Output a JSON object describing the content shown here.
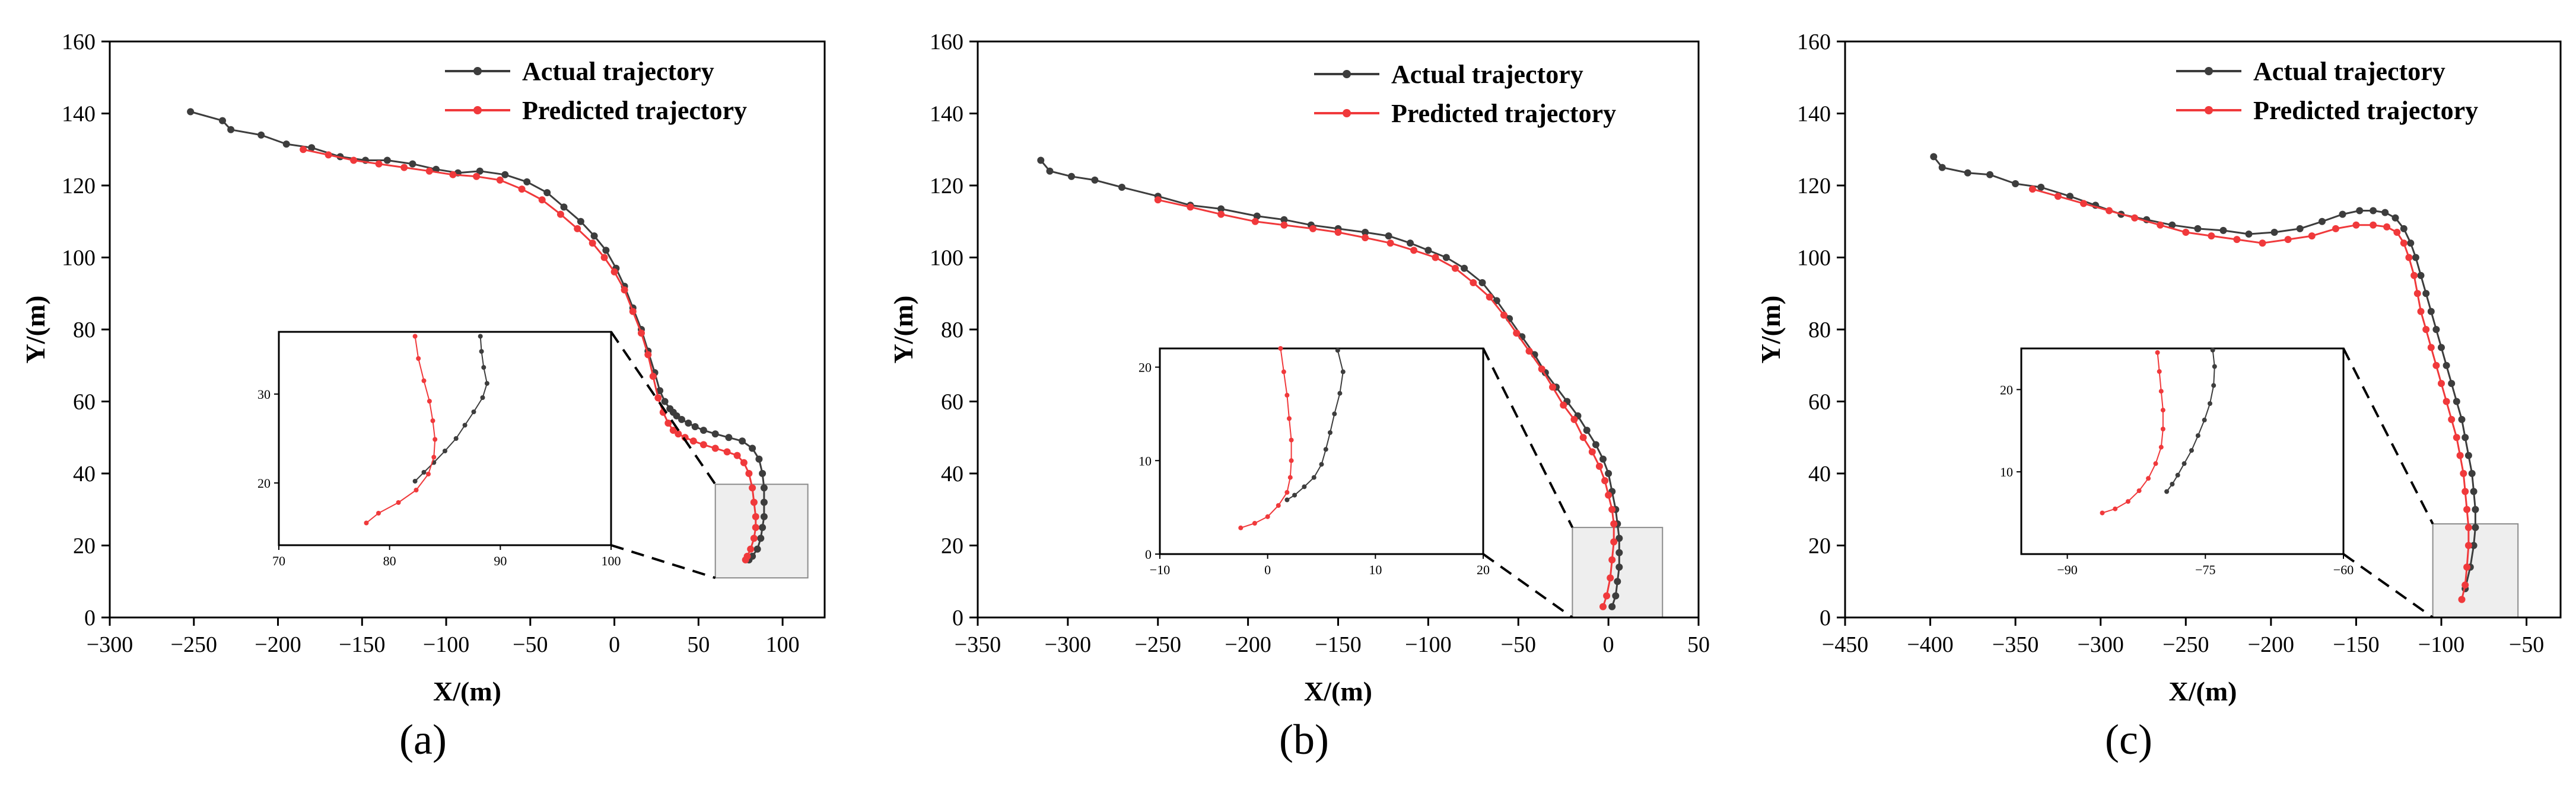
{
  "figure": {
    "panels": [
      "(a)",
      "(b)",
      "(c)"
    ]
  },
  "colors": {
    "actual": "#3d3d3d",
    "predicted": "#f0393b",
    "zoom_box_fill": "#eeeeee",
    "zoom_box_stroke": "#8c8c8c"
  },
  "chart_data": [
    {
      "type": "line",
      "panel_label": "(a)",
      "xlabel": "X/(m)",
      "ylabel": "Y/(m)",
      "xlim": [
        -300,
        125
      ],
      "ylim": [
        0,
        160
      ],
      "xticks": [
        -300,
        -250,
        -200,
        -150,
        -100,
        -50,
        0,
        50,
        100
      ],
      "yticks": [
        0,
        20,
        40,
        60,
        80,
        100,
        120,
        140,
        160
      ],
      "legend_position": "top-right",
      "series": [
        {
          "name": "Actual trajectory",
          "x": [
            -252,
            -233,
            -228,
            -210,
            -195,
            -180,
            -163,
            -148,
            -135,
            -120,
            -106,
            -93,
            -80,
            -65,
            -52,
            -40,
            -30,
            -20,
            -12,
            -5,
            1,
            6,
            11,
            16,
            20,
            24,
            27,
            30,
            33,
            35,
            37,
            40,
            44,
            48,
            53,
            60,
            68,
            76,
            82,
            86,
            88,
            89,
            89,
            89,
            88,
            87,
            85,
            82,
            80
          ],
          "y": [
            140.5,
            138,
            135.5,
            134,
            131.5,
            130.5,
            128,
            127,
            127,
            126,
            124.5,
            123.5,
            124,
            123,
            121,
            118,
            114,
            110,
            106,
            102,
            97,
            92,
            86,
            80,
            74,
            68,
            63,
            60,
            58,
            57,
            56,
            55,
            54,
            53,
            52,
            51,
            50,
            49,
            47,
            44,
            40,
            36,
            32,
            28,
            25,
            22,
            19,
            17,
            16
          ]
        },
        {
          "name": "Predicted trajectory",
          "x": [
            -185,
            -170,
            -155,
            -140,
            -125,
            -110,
            -96,
            -82,
            -68,
            -55,
            -43,
            -32,
            -22,
            -13,
            -6,
            0,
            6,
            11,
            16,
            20,
            23,
            26,
            29,
            32,
            35,
            38,
            42,
            47,
            53,
            60,
            67,
            73,
            77,
            80,
            82,
            83,
            84,
            84,
            83,
            81,
            79,
            78
          ],
          "y": [
            130,
            128.5,
            127,
            126,
            125,
            124,
            123,
            122.5,
            121.5,
            119,
            116,
            112,
            108,
            104,
            100,
            96,
            91,
            85,
            79,
            73,
            67,
            61,
            57,
            54,
            52,
            51,
            50,
            49,
            48,
            47,
            46,
            45,
            43,
            40,
            36,
            32,
            28,
            25,
            22,
            19,
            17,
            16
          ]
        }
      ],
      "zoom_region": {
        "xlim": [
          60,
          115
        ],
        "ylim": [
          11,
          37
        ]
      },
      "inset": {
        "xlim": [
          70,
          100
        ],
        "ylim": [
          13,
          37
        ],
        "xticks": [
          70,
          80,
          90,
          100
        ],
        "yticks": [
          20,
          30
        ],
        "series": [
          {
            "name": "Actual trajectory",
            "x": [
              88.2,
              88.3,
              88.5,
              88.8,
              88.4,
              87.6,
              86.8,
              86.0,
              85.0,
              84.0,
              83.1,
              82.3
            ],
            "y": [
              36.5,
              34.8,
              33.0,
              31.2,
              29.6,
              28.0,
              26.5,
              25.0,
              23.6,
              22.3,
              21.2,
              20.2
            ]
          },
          {
            "name": "Predicted trajectory",
            "x": [
              82.3,
              82.6,
              83.1,
              83.6,
              83.9,
              84.1,
              84.0,
              83.5,
              82.4,
              80.8,
              79.0,
              77.9
            ],
            "y": [
              36.5,
              34.0,
              31.5,
              29.2,
              27.0,
              24.9,
              22.9,
              21.0,
              19.2,
              17.8,
              16.6,
              15.5
            ]
          }
        ]
      }
    },
    {
      "type": "line",
      "panel_label": "(b)",
      "xlabel": "X/(m)",
      "ylabel": "Y/(m)",
      "xlim": [
        -350,
        50
      ],
      "ylim": [
        0,
        160
      ],
      "xticks": [
        -350,
        -300,
        -250,
        -200,
        -150,
        -100,
        -50,
        0,
        50
      ],
      "yticks": [
        0,
        20,
        40,
        60,
        80,
        100,
        120,
        140,
        160
      ],
      "legend_position": "top-right",
      "series": [
        {
          "name": "Actual trajectory",
          "x": [
            -315,
            -310,
            -298,
            -285,
            -270,
            -250,
            -232,
            -215,
            -195,
            -180,
            -165,
            -150,
            -135,
            -122,
            -110,
            -100,
            -90,
            -80,
            -70,
            -62,
            -55,
            -48,
            -41,
            -35,
            -29,
            -23,
            -17,
            -12,
            -7,
            -3,
            0,
            2,
            4,
            5,
            6,
            6,
            6,
            5,
            4,
            2
          ],
          "y": [
            127,
            124,
            122.5,
            121.5,
            119.5,
            117,
            114.5,
            113.5,
            111.5,
            110.5,
            109,
            108,
            107,
            106,
            104,
            102,
            100,
            97,
            93,
            88,
            83,
            78,
            73,
            68,
            64,
            60,
            56,
            52,
            48,
            44,
            40,
            35,
            30,
            26,
            22,
            18,
            14,
            10,
            6,
            3
          ]
        },
        {
          "name": "Predicted trajectory",
          "x": [
            -250,
            -232,
            -215,
            -196,
            -180,
            -164,
            -150,
            -135,
            -121,
            -108,
            -96,
            -85,
            -75,
            -66,
            -58,
            -51,
            -44,
            -37,
            -31,
            -25,
            -19,
            -14,
            -9,
            -5,
            -2,
            0,
            2,
            3,
            3,
            2,
            1,
            -1,
            -3
          ],
          "y": [
            116,
            114,
            112,
            110,
            109,
            108,
            107,
            105.5,
            104,
            102,
            100,
            97,
            93,
            89,
            84,
            79,
            74,
            69,
            64,
            59,
            55,
            50,
            46,
            42,
            38,
            34,
            30,
            26,
            21,
            16,
            11,
            6,
            3
          ]
        }
      ],
      "zoom_region": {
        "xlim": [
          -20,
          30
        ],
        "ylim": [
          0,
          25
        ]
      },
      "inset": {
        "xlim": [
          -10,
          20
        ],
        "ylim": [
          0,
          22
        ],
        "xticks": [
          -10,
          0,
          10,
          20
        ],
        "yticks": [
          0,
          10,
          20
        ],
        "series": [
          {
            "name": "Actual trajectory",
            "x": [
              6.5,
              7.0,
              6.7,
              6.2,
              5.8,
              5.4,
              5.0,
              4.3,
              3.4,
              2.5,
              1.8
            ],
            "y": [
              21.8,
              19.5,
              17.2,
              15.0,
              13.0,
              11.2,
              9.6,
              8.2,
              7.2,
              6.3,
              5.8
            ]
          },
          {
            "name": "Predicted trajectory",
            "x": [
              1.2,
              1.5,
              1.8,
              2.0,
              2.2,
              2.2,
              2.1,
              1.8,
              1.0,
              0.0,
              -1.2,
              -2.5
            ],
            "y": [
              22.0,
              19.5,
              17.0,
              14.5,
              12.2,
              10.0,
              8.2,
              6.6,
              5.2,
              4.0,
              3.3,
              2.8
            ]
          }
        ]
      }
    },
    {
      "type": "line",
      "panel_label": "(c)",
      "xlabel": "X/(m)",
      "ylabel": "Y/(m)",
      "xlim": [
        -450,
        -30
      ],
      "ylim": [
        0,
        160
      ],
      "xticks": [
        -450,
        -400,
        -350,
        -300,
        -250,
        -200,
        -150,
        -100,
        -50
      ],
      "yticks": [
        0,
        20,
        40,
        60,
        80,
        100,
        120,
        140,
        160
      ],
      "legend_position": "top-right",
      "series": [
        {
          "name": "Actual trajectory",
          "x": [
            -398,
            -393,
            -378,
            -365,
            -350,
            -335,
            -318,
            -303,
            -288,
            -273,
            -258,
            -243,
            -228,
            -213,
            -198,
            -183,
            -170,
            -158,
            -148,
            -140,
            -133,
            -127,
            -122,
            -118,
            -115,
            -112,
            -109,
            -106,
            -103,
            -100,
            -97,
            -94,
            -91,
            -88,
            -86,
            -84,
            -82,
            -81,
            -80,
            -80,
            -81,
            -83,
            -86
          ],
          "y": [
            128,
            125,
            123.5,
            123,
            120.5,
            119.5,
            117,
            114.5,
            112,
            110.5,
            109,
            108,
            107.5,
            106.5,
            107,
            108,
            110,
            112,
            113,
            113,
            112.5,
            111,
            108,
            104,
            100,
            95,
            90,
            85,
            80,
            75,
            70,
            65,
            60,
            55,
            50,
            45,
            40,
            35,
            30,
            25,
            20,
            14,
            8
          ]
        },
        {
          "name": "Predicted trajectory",
          "x": [
            -340,
            -325,
            -310,
            -295,
            -280,
            -265,
            -250,
            -235,
            -220,
            -205,
            -190,
            -176,
            -162,
            -150,
            -140,
            -132,
            -126,
            -122,
            -119,
            -116,
            -114,
            -112,
            -109,
            -106,
            -103,
            -100,
            -97,
            -94,
            -91,
            -89,
            -87,
            -86,
            -85,
            -84,
            -84,
            -85,
            -86,
            -88
          ],
          "y": [
            119,
            117,
            115,
            113,
            111,
            109,
            107,
            106,
            105,
            104,
            105,
            106,
            108,
            109,
            109,
            108.5,
            107,
            104,
            100,
            95,
            90,
            85,
            80,
            75,
            70,
            65,
            60,
            55,
            50,
            45,
            40,
            35,
            30,
            25,
            20,
            14,
            9,
            5
          ]
        }
      ],
      "zoom_region": {
        "xlim": [
          -105,
          -55
        ],
        "ylim": [
          0,
          26
        ]
      },
      "inset": {
        "xlim": [
          -95,
          -60
        ],
        "ylim": [
          0,
          25
        ],
        "xticks": [
          -90,
          -75,
          -60
        ],
        "yticks": [
          10,
          20
        ],
        "series": [
          {
            "name": "Actual trajectory",
            "x": [
              -74.2,
              -74.0,
              -74.1,
              -74.5,
              -75.1,
              -75.8,
              -76.5,
              -77.3,
              -78.0,
              -78.6,
              -79.2
            ],
            "y": [
              24.8,
              22.8,
              20.5,
              18.3,
              16.3,
              14.4,
              12.6,
              11.0,
              9.6,
              8.5,
              7.6
            ]
          },
          {
            "name": "Predicted trajectory",
            "x": [
              -80.2,
              -80.0,
              -79.8,
              -79.6,
              -79.6,
              -79.8,
              -80.4,
              -81.2,
              -82.2,
              -83.4,
              -84.8,
              -86.2
            ],
            "y": [
              24.5,
              22.2,
              19.8,
              17.5,
              15.2,
              13.0,
              11.0,
              9.2,
              7.7,
              6.4,
              5.5,
              5.0
            ]
          }
        ]
      }
    }
  ]
}
